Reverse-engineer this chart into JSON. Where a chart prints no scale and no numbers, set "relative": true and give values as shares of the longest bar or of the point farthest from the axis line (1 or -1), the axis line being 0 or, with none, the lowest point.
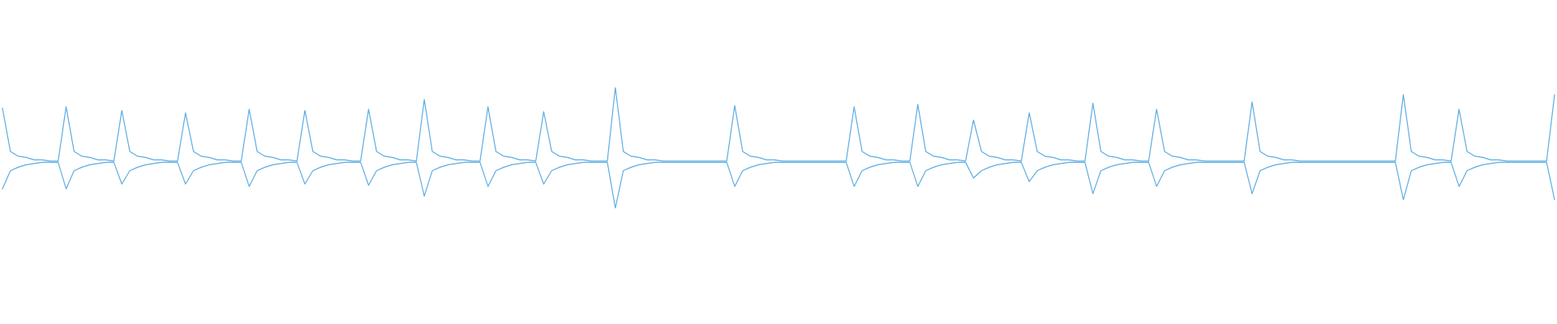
{
  "chart_data": {
    "type": "line",
    "relative": true,
    "marker": "none",
    "categories": [
      null,
      null,
      null,
      null,
      null,
      null,
      null,
      null,
      null,
      null,
      null,
      null,
      null,
      null,
      null,
      null,
      null,
      null,
      null,
      null,
      null,
      null,
      null,
      null,
      null,
      null,
      null,
      null,
      null,
      null,
      null,
      null,
      null,
      null,
      null,
      null,
      null,
      null,
      null,
      null,
      null,
      null,
      null,
      null,
      null,
      null,
      null,
      null,
      null,
      null,
      null,
      null,
      null,
      null,
      null,
      null,
      null,
      null,
      null,
      null,
      null,
      null,
      null,
      null,
      null,
      null,
      null,
      null,
      null,
      null,
      null,
      null,
      null,
      null,
      null,
      null,
      null,
      null,
      null,
      null,
      null,
      null,
      null,
      null,
      null,
      null,
      null,
      null,
      null,
      null,
      null,
      null,
      null,
      null,
      null,
      null,
      null,
      null,
      null,
      null,
      null,
      null,
      null,
      null,
      null,
      null,
      null,
      null,
      null,
      null,
      null,
      null,
      null,
      null,
      null,
      null,
      null,
      null,
      null,
      null,
      null,
      null,
      null,
      null,
      null,
      null,
      null,
      null,
      null,
      null,
      null,
      null,
      null,
      null,
      null,
      null,
      null,
      null,
      null,
      null,
      null,
      null,
      null,
      null,
      null,
      null,
      null,
      null,
      null,
      null,
      null,
      null,
      null,
      null,
      null,
      null,
      null,
      null,
      null,
      null,
      null,
      null,
      null,
      null,
      null,
      null,
      null,
      null,
      null,
      null,
      null,
      null,
      null,
      null,
      null,
      null,
      null,
      null,
      null,
      null,
      null,
      null,
      null,
      null,
      null,
      null,
      null,
      null,
      null,
      null,
      null,
      null,
      null,
      null,
      null,
      null
    ],
    "series": [
      {
        "color": "#5dade2",
        "values": [
          0.83,
          0.47,
          0.43,
          0.42,
          0.4,
          0.4,
          0.39,
          0.39,
          0.84,
          0.47,
          0.43,
          0.42,
          0.4,
          0.4,
          0.39,
          0.81,
          0.47,
          0.43,
          0.42,
          0.4,
          0.4,
          0.39,
          0.39,
          0.79,
          0.47,
          0.43,
          0.42,
          0.4,
          0.4,
          0.39,
          0.39,
          0.82,
          0.47,
          0.43,
          0.42,
          0.4,
          0.4,
          0.39,
          0.81,
          0.47,
          0.43,
          0.42,
          0.4,
          0.4,
          0.39,
          0.39,
          0.82,
          0.47,
          0.43,
          0.42,
          0.4,
          0.4,
          0.39,
          0.9,
          0.47,
          0.43,
          0.42,
          0.4,
          0.4,
          0.39,
          0.39,
          0.84,
          0.47,
          0.43,
          0.42,
          0.4,
          0.4,
          0.39,
          0.8,
          0.47,
          0.43,
          0.42,
          0.4,
          0.4,
          0.39,
          0.39,
          0.39,
          1,
          0.47,
          0.43,
          0.42,
          0.4,
          0.4,
          0.39,
          0.39,
          0.39,
          0.39,
          0.39,
          0.39,
          0.39,
          0.39,
          0.39,
          0.85,
          0.47,
          0.43,
          0.42,
          0.4,
          0.4,
          0.39,
          0.39,
          0.39,
          0.39,
          0.39,
          0.39,
          0.39,
          0.39,
          0.39,
          0.84,
          0.47,
          0.43,
          0.42,
          0.4,
          0.4,
          0.39,
          0.39,
          0.86,
          0.47,
          0.43,
          0.42,
          0.4,
          0.4,
          0.39,
          0.73,
          0.47,
          0.43,
          0.42,
          0.4,
          0.4,
          0.39,
          0.79,
          0.47,
          0.43,
          0.42,
          0.4,
          0.4,
          0.39,
          0.39,
          0.87,
          0.47,
          0.43,
          0.42,
          0.4,
          0.4,
          0.39,
          0.39,
          0.82,
          0.47,
          0.43,
          0.42,
          0.4,
          0.4,
          0.39,
          0.39,
          0.39,
          0.39,
          0.39,
          0.39,
          0.88,
          0.47,
          0.43,
          0.42,
          0.4,
          0.4,
          0.39,
          0.39,
          0.39,
          0.39,
          0.39,
          0.39,
          0.39,
          0.39,
          0.39,
          0.39,
          0.39,
          0.39,
          0.39,
          0.94,
          0.47,
          0.43,
          0.42,
          0.4,
          0.4,
          0.39,
          0.82,
          0.47,
          0.43,
          0.42,
          0.4,
          0.4,
          0.39,
          0.39,
          0.39,
          0.39,
          0.39,
          0.39,
          0.94
        ]
      },
      {
        "color": "#5dade2",
        "values": [
          0.16,
          0.31,
          0.34,
          0.36,
          0.37,
          0.38,
          0.38,
          0.38,
          0.16,
          0.31,
          0.34,
          0.36,
          0.37,
          0.38,
          0.38,
          0.2,
          0.31,
          0.34,
          0.36,
          0.37,
          0.38,
          0.38,
          0.38,
          0.2,
          0.31,
          0.34,
          0.36,
          0.37,
          0.38,
          0.38,
          0.38,
          0.18,
          0.31,
          0.34,
          0.36,
          0.37,
          0.38,
          0.38,
          0.2,
          0.31,
          0.34,
          0.36,
          0.37,
          0.38,
          0.38,
          0.38,
          0.19,
          0.31,
          0.34,
          0.36,
          0.37,
          0.38,
          0.38,
          0.1,
          0.31,
          0.34,
          0.36,
          0.37,
          0.38,
          0.38,
          0.38,
          0.18,
          0.31,
          0.34,
          0.36,
          0.37,
          0.38,
          0.38,
          0.2,
          0.31,
          0.34,
          0.36,
          0.37,
          0.38,
          0.38,
          0.38,
          0.38,
          0,
          0.31,
          0.34,
          0.36,
          0.37,
          0.38,
          0.38,
          0.38,
          0.38,
          0.38,
          0.38,
          0.38,
          0.38,
          0.38,
          0.38,
          0.18,
          0.31,
          0.34,
          0.36,
          0.37,
          0.38,
          0.38,
          0.38,
          0.38,
          0.38,
          0.38,
          0.38,
          0.38,
          0.38,
          0.38,
          0.18,
          0.31,
          0.34,
          0.36,
          0.37,
          0.38,
          0.38,
          0.38,
          0.18,
          0.31,
          0.34,
          0.36,
          0.37,
          0.38,
          0.38,
          0.25,
          0.31,
          0.34,
          0.36,
          0.37,
          0.38,
          0.38,
          0.22,
          0.31,
          0.34,
          0.36,
          0.37,
          0.38,
          0.38,
          0.38,
          0.12,
          0.31,
          0.34,
          0.36,
          0.37,
          0.38,
          0.38,
          0.38,
          0.18,
          0.31,
          0.34,
          0.36,
          0.37,
          0.38,
          0.38,
          0.38,
          0.38,
          0.38,
          0.38,
          0.38,
          0.12,
          0.31,
          0.34,
          0.36,
          0.37,
          0.38,
          0.38,
          0.38,
          0.38,
          0.38,
          0.38,
          0.38,
          0.38,
          0.38,
          0.38,
          0.38,
          0.38,
          0.38,
          0.38,
          0.07,
          0.31,
          0.34,
          0.36,
          0.37,
          0.38,
          0.38,
          0.18,
          0.31,
          0.34,
          0.36,
          0.37,
          0.38,
          0.38,
          0.38,
          0.38,
          0.38,
          0.38,
          0.38,
          0.07
        ]
      }
    ]
  }
}
